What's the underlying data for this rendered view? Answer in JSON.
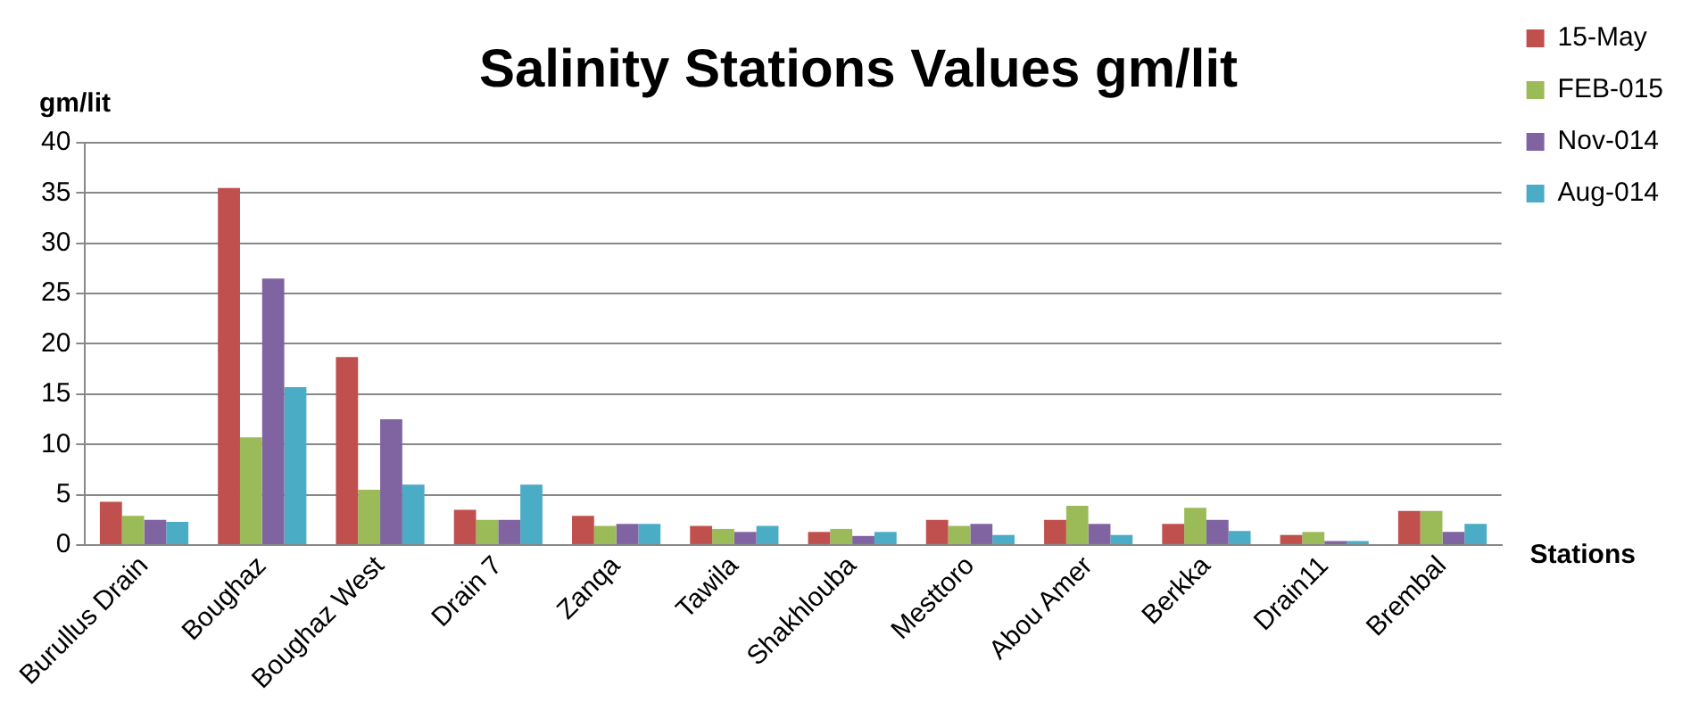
{
  "chart_data": {
    "type": "bar",
    "title": "Salinity Stations Values gm/lit",
    "ylabel": "gm/lit",
    "xlabel": "Stations",
    "categories": [
      "Burullus Drain",
      "Boughaz",
      "Boughaz West",
      "Drain 7",
      "Zanqa",
      "Tawila",
      "Shakhlouba",
      "Mesttoro",
      "Abou Amer",
      "Berkka",
      "Drain11",
      "Brembal"
    ],
    "series": [
      {
        "name": "15-May",
        "color": "#c0504d",
        "values": [
          4.3,
          35.5,
          18.7,
          3.5,
          2.9,
          1.9,
          1.3,
          2.5,
          2.5,
          2.1,
          1.0,
          3.4
        ]
      },
      {
        "name": "FEB-015",
        "color": "#9bbb59",
        "values": [
          2.9,
          10.7,
          5.5,
          2.5,
          1.9,
          1.6,
          1.6,
          1.9,
          3.9,
          3.7,
          1.3,
          3.4
        ]
      },
      {
        "name": "Nov-014",
        "color": "#8064a2",
        "values": [
          2.5,
          26.5,
          12.5,
          2.5,
          2.1,
          1.3,
          0.9,
          2.1,
          2.1,
          2.5,
          0.4,
          1.3
        ]
      },
      {
        "name": "Aug-014",
        "color": "#4bacc6",
        "values": [
          2.3,
          15.7,
          6.0,
          6.0,
          2.1,
          1.9,
          1.3,
          1.0,
          1.0,
          1.4,
          0.4,
          2.1
        ]
      }
    ],
    "ylim": [
      0,
      40
    ],
    "yticks": [
      0,
      5,
      10,
      15,
      20,
      25,
      30,
      35,
      40
    ],
    "grid": "y",
    "legend": "right"
  }
}
